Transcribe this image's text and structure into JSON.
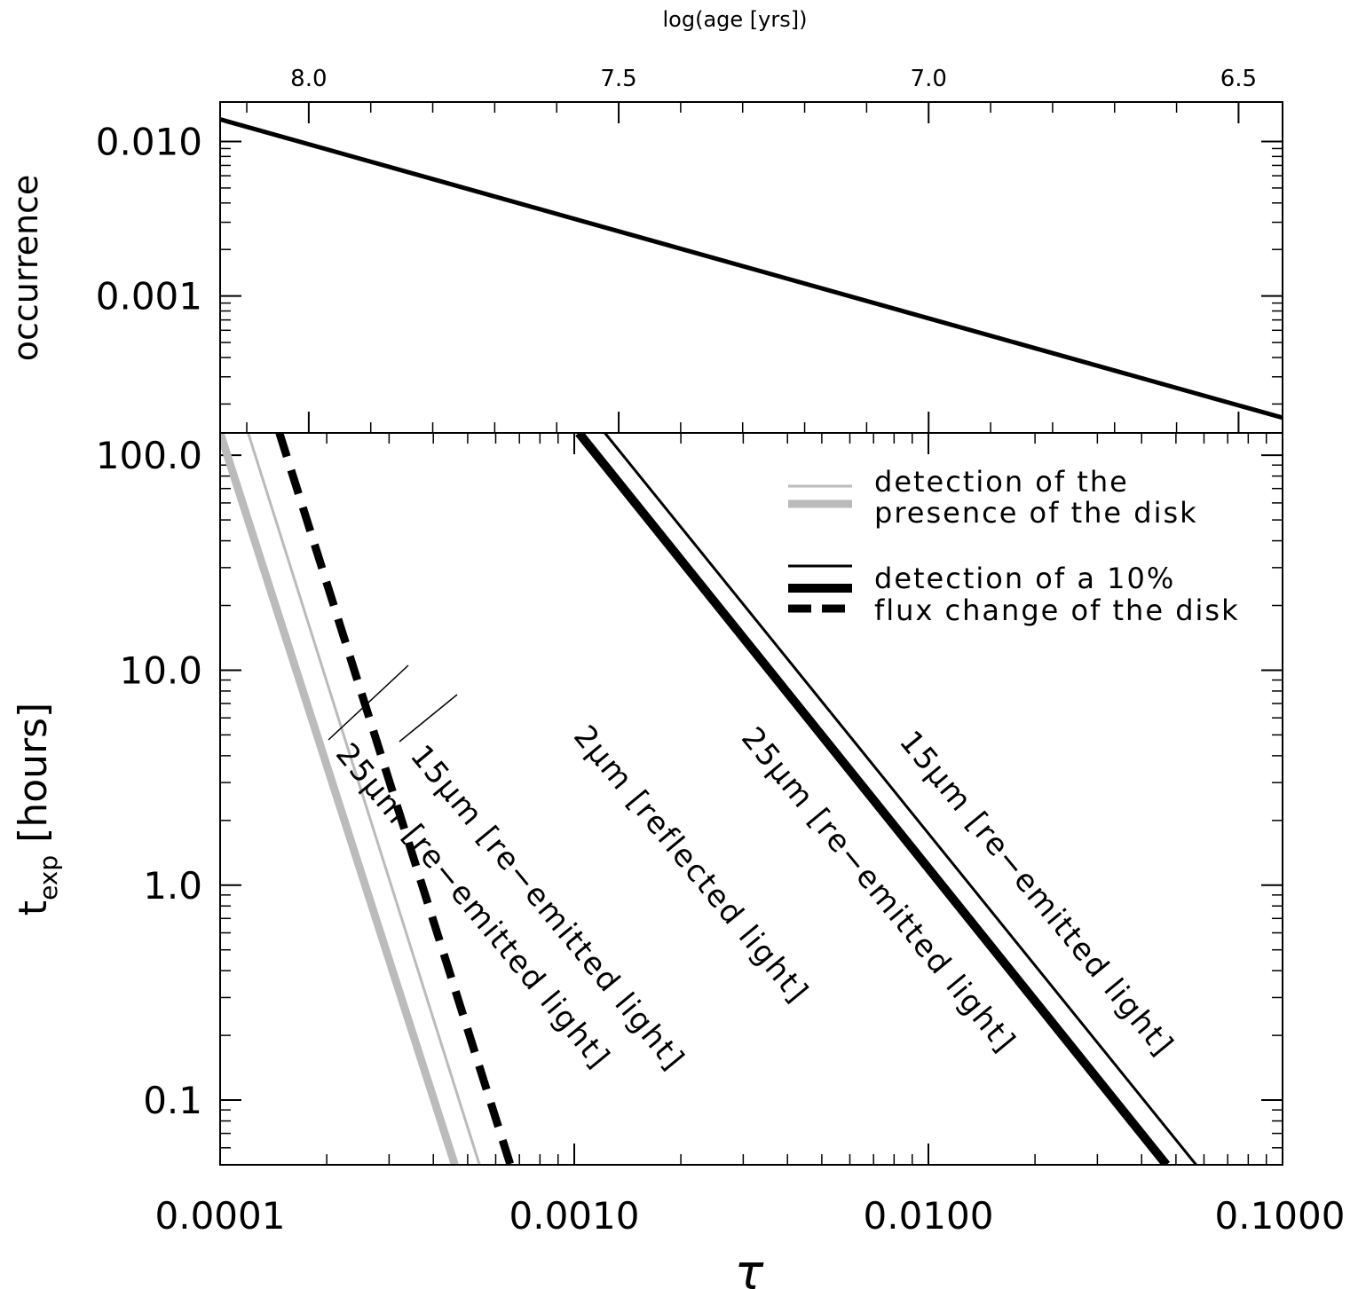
{
  "chart_data": [
    {
      "type": "line",
      "panel": "top",
      "xlabel": "log(age [yrs])",
      "ylabel": "occurrence",
      "x_scale": "linear-reversed",
      "xlim": [
        8.143,
        6.429
      ],
      "x_ticks": [
        8.0,
        7.5,
        7.0,
        6.5
      ],
      "x_tick_labels": [
        "8.0",
        "7.5",
        "7.0",
        "6.5"
      ],
      "y_scale": "log",
      "ylim": [
        0.00013,
        0.018
      ],
      "y_ticks": [
        0.01,
        0.001
      ],
      "y_tick_labels": [
        "0.010",
        "0.001"
      ],
      "series": [
        {
          "x": [
            8.143,
            6.429
          ],
          "y": [
            0.0139,
            0.000163
          ]
        }
      ]
    },
    {
      "type": "line",
      "panel": "bottom",
      "xlabel": "τ",
      "ylabel_main": "t",
      "ylabel_sub": "exp",
      "ylabel_units": "[hours]",
      "x_scale": "log",
      "xlim": [
        0.0001,
        0.1
      ],
      "x_ticks": [
        0.0001,
        0.001,
        0.01,
        0.1
      ],
      "x_tick_labels": [
        "0.0001",
        "0.0010",
        "0.0100",
        "0.1000"
      ],
      "y_scale": "log",
      "ylim": [
        0.05,
        127
      ],
      "y_ticks": [
        100,
        10,
        1,
        0.1
      ],
      "y_tick_labels": [
        "100.0",
        "10.0",
        "1.0",
        "0.1"
      ],
      "series": [
        {
          "x": [
            0.0001,
            0.00046
          ],
          "y": [
            127,
            0.05
          ],
          "color": "#bbbbbb",
          "width": 9,
          "dash": "solid"
        },
        {
          "x": [
            0.00012,
            0.00054
          ],
          "y": [
            127,
            0.05
          ],
          "color": "#bbbbbb",
          "width": 3,
          "dash": "solid"
        },
        {
          "x": [
            0.000147,
            0.00066
          ],
          "y": [
            127,
            0.05
          ],
          "color": "#000000",
          "width": 9,
          "dash": "dashed"
        },
        {
          "x": [
            0.00103,
            0.047
          ],
          "y": [
            127,
            0.05
          ],
          "color": "#000000",
          "width": 10,
          "dash": "solid"
        },
        {
          "x": [
            0.00122,
            0.057
          ],
          "y": [
            127,
            0.05
          ],
          "color": "#000000",
          "width": 3,
          "dash": "solid"
        }
      ],
      "legend": [
        {
          "text": "detection of the",
          "color": "#bbbbbb",
          "width": 3,
          "dash": "solid"
        },
        {
          "text": "presence of the disk",
          "color": "#bbbbbb",
          "width": 9,
          "dash": "solid"
        },
        {
          "text": "detection of a 10%",
          "color": "#000000",
          "width": 3,
          "dash": "solid"
        },
        {
          "text": "flux change of the disk",
          "color": "#000000",
          "width": 10,
          "dash": "solid"
        },
        {
          "text": "",
          "color": "#000000",
          "width": 9,
          "dash": "dashed"
        }
      ],
      "annotations": [
        "25μm [re−emitted light]",
        "15μm [re−emitted light]",
        "2μm [reflected light]",
        "25μm [re−emitted light]",
        "15μm [re−emitted light]"
      ]
    }
  ]
}
